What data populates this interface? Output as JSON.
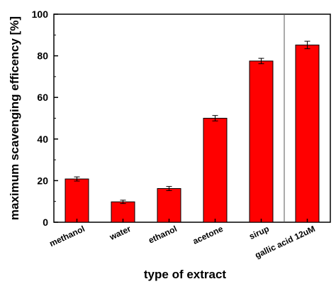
{
  "chart_data": {
    "type": "bar",
    "title": "",
    "xlabel": "type of extract",
    "ylabel": "maximum scavenging efficency [%]",
    "ylim": [
      0,
      100
    ],
    "yticks": [
      0,
      20,
      40,
      60,
      80,
      100
    ],
    "categories": [
      "methanol",
      "water",
      "ethanol",
      "acetone",
      "sirup",
      "gallic acid 12uM"
    ],
    "values": [
      20.8,
      9.8,
      16.2,
      50.0,
      77.5,
      85.2
    ],
    "errors": [
      1.0,
      0.8,
      1.0,
      1.3,
      1.3,
      1.8
    ],
    "separator_after_index": 4,
    "grid": false,
    "legend": "none",
    "bar_color": "#ff0000",
    "bar_edge_color": "#000000"
  }
}
